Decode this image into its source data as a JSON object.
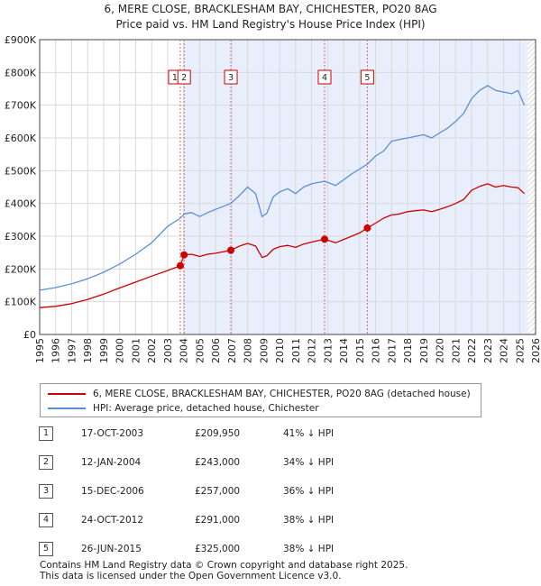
{
  "title": "6, MERE CLOSE, BRACKLESHAM BAY, CHICHESTER, PO20 8AG",
  "subtitle": "Price paid vs. HM Land Registry's House Price Index (HPI)",
  "colors": {
    "property": "#cc0000",
    "hpi": "#5b8ed6",
    "shade": "#e8eefb",
    "grid": "#d9d9d9"
  },
  "chart_data": {
    "type": "line",
    "title": "6, MERE CLOSE, BRACKLESHAM BAY, CHICHESTER, PO20 8AG",
    "subtitle": "Price paid vs. HM Land Registry's House Price Index (HPI)",
    "xlabel": "",
    "ylabel": "",
    "xlim": [
      1995,
      2026
    ],
    "ylim": [
      0,
      900000
    ],
    "y_ticks": [
      {
        "value": 0,
        "label": "£0"
      },
      {
        "value": 100000,
        "label": "£100K"
      },
      {
        "value": 200000,
        "label": "£200K"
      },
      {
        "value": 300000,
        "label": "£300K"
      },
      {
        "value": 400000,
        "label": "£400K"
      },
      {
        "value": 500000,
        "label": "£500K"
      },
      {
        "value": 600000,
        "label": "£600K"
      },
      {
        "value": 700000,
        "label": "£700K"
      },
      {
        "value": 800000,
        "label": "£800K"
      },
      {
        "value": 900000,
        "label": "£900K"
      }
    ],
    "x_ticks": [
      "1995",
      "1996",
      "1997",
      "1998",
      "1999",
      "2000",
      "2001",
      "2002",
      "2003",
      "2004",
      "2005",
      "2006",
      "2007",
      "2008",
      "2009",
      "2010",
      "2011",
      "2012",
      "2013",
      "2014",
      "2015",
      "2016",
      "2017",
      "2018",
      "2019",
      "2020",
      "2021",
      "2022",
      "2023",
      "2024",
      "2025",
      "2026"
    ],
    "shaded_range": [
      2004.03,
      2025.5
    ],
    "series": [
      {
        "name": "6, MERE CLOSE, BRACKLESHAM BAY, CHICHESTER, PO20 8AG (detached house)",
        "color": "#cc0000",
        "x": [
          1995.0,
          1996.0,
          1997.0,
          1998.0,
          1999.0,
          2000.0,
          2001.0,
          2002.0,
          2003.0,
          2003.79,
          2004.03,
          2004.5,
          2005.0,
          2005.5,
          2006.0,
          2006.95,
          2007.5,
          2008.0,
          2008.5,
          2008.9,
          2009.2,
          2009.6,
          2010.0,
          2010.5,
          2011.0,
          2011.5,
          2012.0,
          2012.81,
          2013.5,
          2014.0,
          2014.5,
          2015.0,
          2015.48,
          2016.0,
          2016.5,
          2017.0,
          2017.5,
          2018.0,
          2018.5,
          2019.0,
          2019.5,
          2020.0,
          2020.5,
          2021.0,
          2021.5,
          2022.0,
          2022.5,
          2023.0,
          2023.5,
          2024.0,
          2024.5,
          2024.9,
          2025.3
        ],
        "values": [
          82000,
          86000,
          94000,
          107000,
          123000,
          142000,
          160000,
          178000,
          195000,
          209950,
          243000,
          245000,
          238000,
          245000,
          248000,
          257000,
          270000,
          278000,
          270000,
          235000,
          240000,
          260000,
          268000,
          272000,
          266000,
          276000,
          282000,
          291000,
          280000,
          290000,
          300000,
          310000,
          325000,
          340000,
          355000,
          365000,
          368000,
          375000,
          378000,
          380000,
          375000,
          382000,
          390000,
          400000,
          412000,
          440000,
          452000,
          460000,
          450000,
          455000,
          450000,
          448000,
          430000
        ]
      },
      {
        "name": "HPI: Average price, detached house, Chichester",
        "color": "#5b8ed6",
        "x": [
          1995.0,
          1996.0,
          1997.0,
          1998.0,
          1999.0,
          2000.0,
          2001.0,
          2002.0,
          2003.0,
          2003.79,
          2004.03,
          2004.5,
          2005.0,
          2005.5,
          2006.0,
          2006.95,
          2007.5,
          2008.0,
          2008.5,
          2008.9,
          2009.2,
          2009.6,
          2010.0,
          2010.5,
          2011.0,
          2011.5,
          2012.0,
          2012.81,
          2013.5,
          2014.0,
          2014.5,
          2015.0,
          2015.48,
          2016.0,
          2016.5,
          2017.0,
          2017.5,
          2018.0,
          2018.5,
          2019.0,
          2019.5,
          2020.0,
          2020.5,
          2021.0,
          2021.5,
          2022.0,
          2022.5,
          2023.0,
          2023.5,
          2024.0,
          2024.5,
          2024.9,
          2025.3
        ],
        "values": [
          135000,
          143000,
          155000,
          170000,
          190000,
          215000,
          245000,
          280000,
          330000,
          355000,
          368000,
          372000,
          360000,
          372000,
          382000,
          400000,
          425000,
          450000,
          430000,
          360000,
          370000,
          420000,
          435000,
          445000,
          430000,
          450000,
          460000,
          468000,
          455000,
          472000,
          490000,
          505000,
          520000,
          545000,
          560000,
          590000,
          595000,
          600000,
          605000,
          610000,
          600000,
          615000,
          630000,
          650000,
          675000,
          720000,
          745000,
          760000,
          745000,
          740000,
          735000,
          745000,
          700000
        ]
      }
    ],
    "sales": [
      {
        "num": "1",
        "x": 2003.79,
        "value": 209950
      },
      {
        "num": "2",
        "x": 2004.03,
        "value": 243000
      },
      {
        "num": "3",
        "x": 2006.95,
        "value": 257000
      },
      {
        "num": "4",
        "x": 2012.81,
        "value": 291000
      },
      {
        "num": "5",
        "x": 2015.48,
        "value": 325000
      }
    ]
  },
  "legend": {
    "property": "6, MERE CLOSE, BRACKLESHAM BAY, CHICHESTER, PO20 8AG (detached house)",
    "hpi": "HPI: Average price, detached house, Chichester"
  },
  "sales_table": [
    {
      "num": "1",
      "date": "17-OCT-2003",
      "price": "£209,950",
      "hpi": "41% ↓ HPI"
    },
    {
      "num": "2",
      "date": "12-JAN-2004",
      "price": "£243,000",
      "hpi": "34% ↓ HPI"
    },
    {
      "num": "3",
      "date": "15-DEC-2006",
      "price": "£257,000",
      "hpi": "36% ↓ HPI"
    },
    {
      "num": "4",
      "date": "24-OCT-2012",
      "price": "£291,000",
      "hpi": "38% ↓ HPI"
    },
    {
      "num": "5",
      "date": "26-JUN-2015",
      "price": "£325,000",
      "hpi": "38% ↓ HPI"
    }
  ],
  "footer": {
    "line1": "Contains HM Land Registry data © Crown copyright and database right 2025.",
    "line2": "This data is licensed under the Open Government Licence v3.0."
  }
}
